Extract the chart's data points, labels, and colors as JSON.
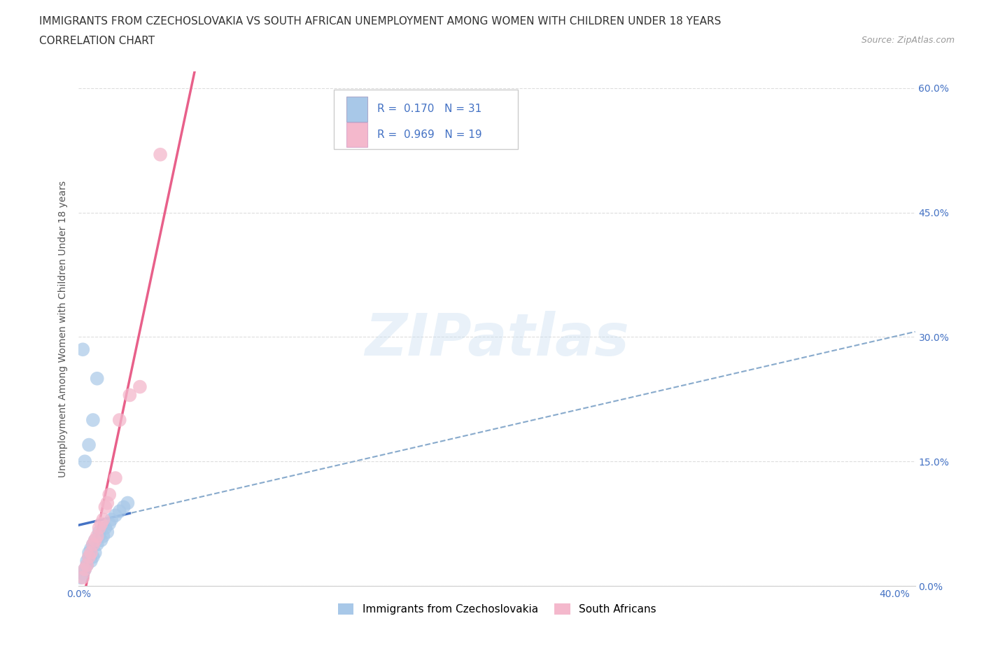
{
  "title_line1": "IMMIGRANTS FROM CZECHOSLOVAKIA VS SOUTH AFRICAN UNEMPLOYMENT AMONG WOMEN WITH CHILDREN UNDER 18 YEARS",
  "title_line2": "CORRELATION CHART",
  "source_text": "Source: ZipAtlas.com",
  "ylabel": "Unemployment Among Women with Children Under 18 years",
  "watermark": "ZIPatlas",
  "legend_label1": "Immigrants from Czechoslovakia",
  "legend_label2": "South Africans",
  "legend_R1": "0.170",
  "legend_N1": "31",
  "legend_R2": "0.969",
  "legend_N2": "19",
  "color_blue": "#a8c8e8",
  "color_blue_line": "#4472c4",
  "color_pink": "#f4b8cc",
  "color_pink_line": "#e8608a",
  "color_dash": "#88aacc",
  "scatter_blue_x": [
    0.001,
    0.002,
    0.003,
    0.004,
    0.004,
    0.005,
    0.005,
    0.006,
    0.006,
    0.007,
    0.007,
    0.008,
    0.008,
    0.009,
    0.01,
    0.01,
    0.011,
    0.012,
    0.013,
    0.014,
    0.015,
    0.016,
    0.018,
    0.02,
    0.022,
    0.024,
    0.003,
    0.005,
    0.007,
    0.009,
    0.002
  ],
  "scatter_blue_y": [
    0.01,
    0.015,
    0.02,
    0.025,
    0.03,
    0.035,
    0.04,
    0.03,
    0.045,
    0.035,
    0.05,
    0.04,
    0.055,
    0.05,
    0.06,
    0.065,
    0.055,
    0.06,
    0.07,
    0.065,
    0.075,
    0.08,
    0.085,
    0.09,
    0.095,
    0.1,
    0.15,
    0.17,
    0.2,
    0.25,
    0.285
  ],
  "scatter_pink_x": [
    0.002,
    0.003,
    0.004,
    0.005,
    0.006,
    0.007,
    0.008,
    0.009,
    0.01,
    0.011,
    0.012,
    0.013,
    0.014,
    0.015,
    0.018,
    0.02,
    0.025,
    0.03,
    0.04
  ],
  "scatter_pink_y": [
    0.01,
    0.02,
    0.025,
    0.035,
    0.04,
    0.05,
    0.055,
    0.06,
    0.07,
    0.075,
    0.08,
    0.095,
    0.1,
    0.11,
    0.13,
    0.2,
    0.23,
    0.24,
    0.52
  ],
  "xlim": [
    0.0,
    0.41
  ],
  "ylim": [
    0.0,
    0.62
  ],
  "x_ticks": [
    0.0,
    0.1,
    0.2,
    0.3,
    0.4
  ],
  "x_tick_labels": [
    "0.0%",
    "",
    "",
    "",
    "40.0%"
  ],
  "y_ticks": [
    0.0,
    0.15,
    0.3,
    0.45,
    0.6
  ],
  "y_tick_labels": [
    "0.0%",
    "15.0%",
    "30.0%",
    "45.0%",
    "60.0%"
  ],
  "grid_color": "#dddddd",
  "background_color": "#ffffff",
  "title_fontsize": 11,
  "axis_label_fontsize": 10,
  "tick_fontsize": 10
}
